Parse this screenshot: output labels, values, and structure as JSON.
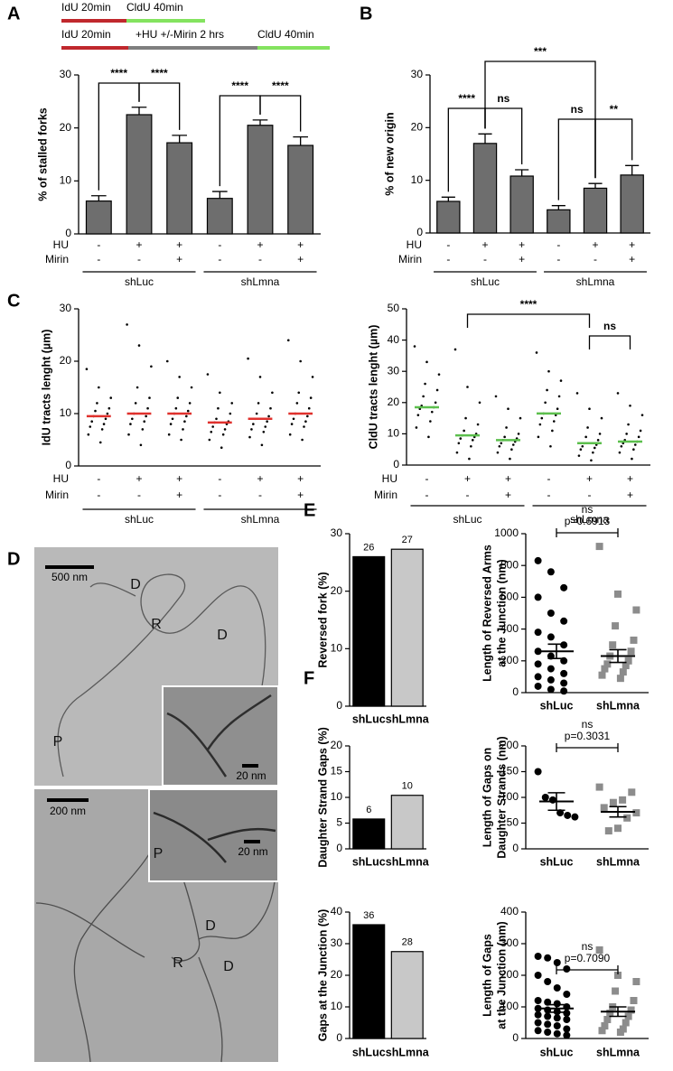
{
  "panel_labels": [
    "A",
    "B",
    "C",
    "D",
    "E",
    "F"
  ],
  "protocol": [
    [
      {
        "label": "IdU 20min",
        "color": "#c0282d"
      },
      {
        "label": "CldU 40min",
        "color": "#84e35f"
      }
    ],
    [
      {
        "label": "IdU 20min",
        "color": "#c0282d"
      },
      {
        "label": "+HU +/-Mirin 2 hrs",
        "color": "#7f7f7f"
      },
      {
        "label": "CldU 40min",
        "color": "#84e35f"
      }
    ]
  ],
  "micrographs": [
    {
      "scale_bar": "500 nm",
      "inset_scale_bar": "20 nm",
      "labels": [
        "D",
        "R",
        "D",
        "P"
      ]
    },
    {
      "scale_bar": "200 nm",
      "inset_scale_bar": "20 nm",
      "labels": [
        "P",
        "D",
        "R",
        "D"
      ]
    }
  ],
  "chart_data": [
    {
      "type": "bar",
      "ylabel": "% of stalled forks",
      "ylim": [
        0,
        30
      ],
      "yticks": [
        0,
        10,
        20,
        30
      ],
      "color": "#6e6e6e",
      "values": [
        6.2,
        22.5,
        17.2,
        6.7,
        20.5,
        16.7
      ],
      "errors": [
        1.0,
        1.4,
        1.4,
        1.3,
        1.0,
        1.6
      ],
      "rows": [
        {
          "label": "HU",
          "signs": [
            "-",
            "+",
            "+",
            "-",
            "+",
            "+"
          ]
        },
        {
          "label": "Mirin",
          "signs": [
            "-",
            "-",
            "+",
            "-",
            "-",
            "+"
          ]
        }
      ],
      "groups": [
        "shLuc",
        "shLmna"
      ],
      "significance": [
        {
          "label": "****",
          "from": 0,
          "to": 1
        },
        {
          "label": "****",
          "from": 1,
          "to": 2
        },
        {
          "label": "****",
          "from": 3,
          "to": 4
        },
        {
          "label": "****",
          "from": 4,
          "to": 5
        }
      ]
    },
    {
      "type": "bar",
      "ylabel": "% of new origin",
      "ylim": [
        0,
        30
      ],
      "yticks": [
        0,
        10,
        20,
        30
      ],
      "color": "#6e6e6e",
      "values": [
        6.0,
        17.0,
        10.8,
        4.4,
        8.5,
        11.0
      ],
      "errors": [
        0.8,
        1.8,
        1.2,
        0.8,
        0.9,
        1.8
      ],
      "rows": [
        {
          "label": "HU",
          "signs": [
            "-",
            "+",
            "+",
            "-",
            "+",
            "+"
          ]
        },
        {
          "label": "Mirin",
          "signs": [
            "-",
            "-",
            "+",
            "-",
            "-",
            "+"
          ]
        }
      ],
      "groups": [
        "shLuc",
        "shLmna"
      ],
      "significance": [
        {
          "label": "****",
          "from": 0,
          "to": 1
        },
        {
          "label": "ns",
          "from": 1,
          "to": 2
        },
        {
          "label": "***",
          "from": 1,
          "to": 4
        },
        {
          "label": "ns",
          "from": 3,
          "to": 4
        },
        {
          "label": "**",
          "from": 4,
          "to": 5
        }
      ]
    },
    {
      "type": "dot",
      "ylabel": "IdU tracts lenght (µm)",
      "ylim": [
        0,
        30
      ],
      "yticks": [
        0,
        10,
        20,
        30
      ],
      "point_color": "#000000",
      "median_color": "#e0312d",
      "values": [
        [
          18.5,
          15,
          13,
          12,
          11,
          10.5,
          10,
          9.5,
          9,
          8.5,
          8,
          7.5,
          7,
          6,
          4.5
        ],
        [
          27,
          23,
          19,
          15,
          13,
          12,
          11,
          10,
          9.5,
          9,
          8.5,
          8,
          7,
          6,
          4
        ],
        [
          20,
          17,
          15,
          13,
          12,
          11,
          10.5,
          10,
          9.5,
          9,
          8.5,
          8,
          7,
          6,
          5
        ],
        [
          17.5,
          14,
          12,
          11,
          10,
          9,
          8.5,
          8.3,
          8,
          7.5,
          7,
          6.5,
          6,
          5,
          3.5
        ],
        [
          20.5,
          17,
          14,
          12,
          11,
          10,
          9.5,
          9,
          8.5,
          8,
          7.5,
          7,
          6.5,
          5.5,
          4
        ],
        [
          24,
          20,
          17,
          14,
          13,
          12,
          11,
          10,
          9.5,
          9,
          8.5,
          8,
          7.5,
          6,
          5
        ]
      ],
      "medians": [
        9.5,
        10,
        10,
        8.3,
        9,
        10
      ],
      "rows": [
        {
          "label": "HU",
          "signs": [
            "-",
            "+",
            "+",
            "-",
            "+",
            "+"
          ]
        },
        {
          "label": "Mirin",
          "signs": [
            "-",
            "-",
            "+",
            "-",
            "-",
            "+"
          ]
        }
      ],
      "groups": [
        "shLuc",
        "shLmna"
      ]
    },
    {
      "type": "dot",
      "ylabel": "CldU tracts lenght (µm)",
      "ylim": [
        0,
        50
      ],
      "yticks": [
        0,
        10,
        20,
        30,
        40,
        50
      ],
      "point_color": "#000000",
      "median_color": "#5cbf4d",
      "values": [
        [
          38,
          33,
          29,
          26,
          24,
          22,
          20,
          19,
          18.5,
          18,
          17,
          16,
          14,
          12,
          9
        ],
        [
          37,
          25,
          20,
          15,
          13,
          11,
          10,
          9.5,
          9,
          8.5,
          8,
          7,
          6,
          4,
          2
        ],
        [
          22,
          18,
          15,
          12,
          10,
          9,
          8.5,
          8,
          7.5,
          7,
          6.5,
          6,
          5,
          4,
          2
        ],
        [
          36,
          30,
          27,
          24,
          22,
          20,
          18,
          16.5,
          16,
          15,
          14,
          13,
          11,
          9,
          6
        ],
        [
          23,
          18,
          15,
          12,
          10,
          9,
          8,
          7,
          6.5,
          6,
          5.5,
          5,
          4,
          3,
          1.5
        ],
        [
          23,
          19,
          16,
          13,
          11,
          10,
          9,
          8,
          7.5,
          7,
          6.5,
          6,
          5,
          4,
          2
        ]
      ],
      "medians": [
        18.5,
        9.5,
        8,
        16.5,
        7,
        7.5
      ],
      "rows": [
        {
          "label": "HU",
          "signs": [
            "-",
            "+",
            "+",
            "-",
            "+",
            "+"
          ]
        },
        {
          "label": "Mirin",
          "signs": [
            "-",
            "-",
            "+",
            "-",
            "-",
            "+"
          ]
        }
      ],
      "groups": [
        "shLuc",
        "shLmna"
      ],
      "significance": [
        {
          "label": "****",
          "from": 1,
          "to": 4
        },
        {
          "label": "ns",
          "from": 4,
          "to": 5
        }
      ]
    },
    {
      "type": "bar",
      "ylabel": "Reversed fork (%)",
      "ylim": [
        0,
        30
      ],
      "yticks": [
        0,
        10,
        20,
        30
      ],
      "categories": [
        "shLuc",
        "shLmna"
      ],
      "colors": [
        "#000000",
        "#c8c8c8"
      ],
      "values": [
        26,
        27.3
      ],
      "value_labels": [
        "26",
        "27"
      ]
    },
    {
      "type": "dot",
      "ylabel": [
        "Length of Reversed Arms",
        "at the Junction (nm)"
      ],
      "ylim": [
        0,
        1000
      ],
      "yticks": [
        0,
        200,
        400,
        600,
        800,
        1000
      ],
      "categories": [
        "shLuc",
        "shLmna"
      ],
      "colors": [
        "#000000",
        "#8c8c8c"
      ],
      "markers": [
        "circle",
        "square"
      ],
      "values": [
        [
          830,
          760,
          660,
          600,
          500,
          450,
          380,
          350,
          300,
          260,
          230,
          200,
          180,
          150,
          120,
          100,
          80,
          60,
          40,
          20,
          10
        ],
        [
          920,
          620,
          520,
          420,
          330,
          300,
          260,
          230,
          200,
          180,
          170,
          150,
          130,
          110,
          90
        ]
      ],
      "means": [
        260,
        230
      ],
      "sems": [
        45,
        40
      ],
      "significance": [
        {
          "label": "ns",
          "note": "p=0.6913",
          "from": 0,
          "to": 1
        }
      ]
    },
    {
      "type": "bar",
      "ylabel": "Daughter Strand Gaps (%)",
      "ylim": [
        0,
        20
      ],
      "yticks": [
        0,
        5,
        10,
        15,
        20
      ],
      "categories": [
        "shLuc",
        "shLmna"
      ],
      "colors": [
        "#000000",
        "#c8c8c8"
      ],
      "values": [
        5.8,
        10.4
      ],
      "value_labels": [
        "6",
        "10"
      ]
    },
    {
      "type": "dot",
      "ylabel": [
        "Length of Gaps on",
        "Daughter Strands (nm)"
      ],
      "ylim": [
        0,
        200
      ],
      "yticks": [
        0,
        50,
        100,
        150,
        200
      ],
      "categories": [
        "shLuc",
        "shLmna"
      ],
      "colors": [
        "#000000",
        "#8c8c8c"
      ],
      "markers": [
        "circle",
        "square"
      ],
      "values": [
        [
          150,
          100,
          95,
          70,
          65,
          62
        ],
        [
          120,
          110,
          95,
          90,
          80,
          70,
          60,
          40,
          35
        ]
      ],
      "means": [
        92,
        72
      ],
      "sems": [
        17,
        10
      ],
      "significance": [
        {
          "label": "ns",
          "note": "p=0.3031",
          "from": 0,
          "to": 1
        }
      ]
    },
    {
      "type": "bar",
      "ylabel": "Gaps at the Junction (%)",
      "ylim": [
        0,
        40
      ],
      "yticks": [
        0,
        10,
        20,
        30,
        40
      ],
      "categories": [
        "shLuc",
        "shLmna"
      ],
      "colors": [
        "#000000",
        "#c8c8c8"
      ],
      "values": [
        36,
        27.5
      ],
      "value_labels": [
        "36",
        "28"
      ]
    },
    {
      "type": "dot",
      "ylabel": [
        "Length of Gaps",
        "at the Junction (nm)"
      ],
      "ylim": [
        0,
        400
      ],
      "yticks": [
        0,
        100,
        200,
        300,
        400
      ],
      "categories": [
        "shLuc",
        "shLmna"
      ],
      "colors": [
        "#000000",
        "#8c8c8c"
      ],
      "markers": [
        "circle",
        "square"
      ],
      "values": [
        [
          260,
          255,
          240,
          220,
          200,
          180,
          160,
          140,
          120,
          115,
          110,
          100,
          95,
          90,
          85,
          80,
          75,
          70,
          65,
          60,
          50,
          45,
          40,
          30,
          25,
          20,
          15,
          10
        ],
        [
          280,
          200,
          180,
          150,
          120,
          100,
          90,
          80,
          70,
          60,
          50,
          40,
          30,
          25,
          20
        ]
      ],
      "means": [
        95,
        85
      ],
      "sems": [
        12,
        15
      ],
      "significance": [
        {
          "label": "ns",
          "note": "p=0.7090",
          "from": 0,
          "to": 1
        }
      ]
    }
  ]
}
